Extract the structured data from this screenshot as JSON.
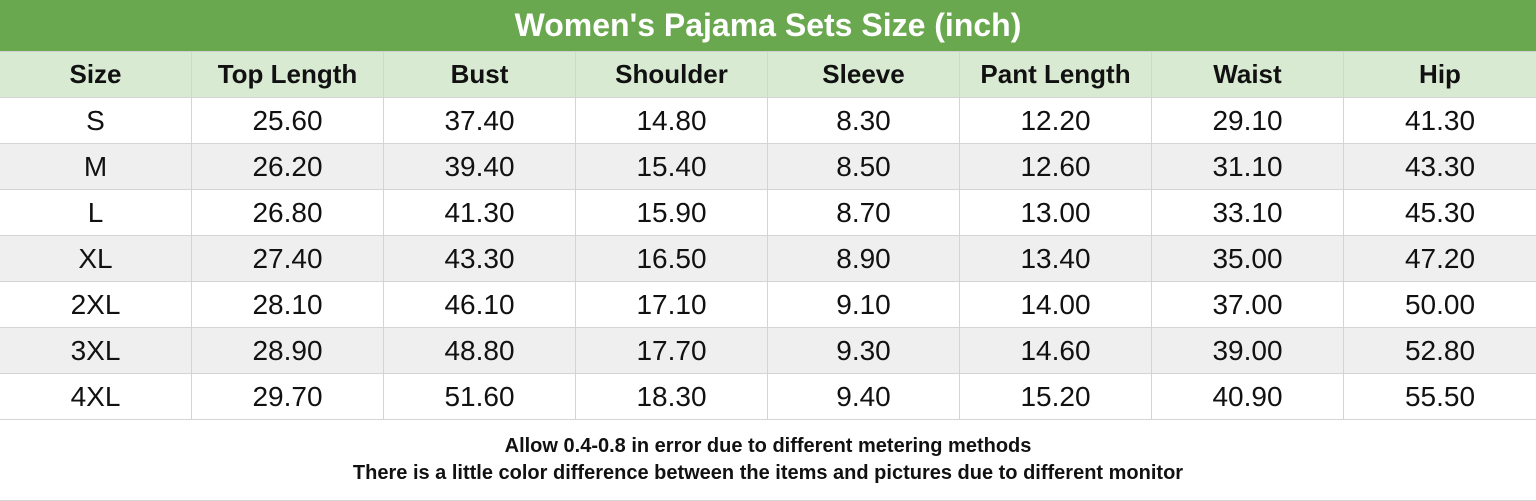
{
  "title": "Women's Pajama Sets Size (inch)",
  "table": {
    "header": [
      "Size",
      "Top Length",
      "Bust",
      "Shoulder",
      "Sleeve",
      "Pant Length",
      "Waist",
      "Hip"
    ],
    "rows": [
      [
        "S",
        "25.60",
        "37.40",
        "14.80",
        "8.30",
        "12.20",
        "29.10",
        "41.30"
      ],
      [
        "M",
        "26.20",
        "39.40",
        "15.40",
        "8.50",
        "12.60",
        "31.10",
        "43.30"
      ],
      [
        "L",
        "26.80",
        "41.30",
        "15.90",
        "8.70",
        "13.00",
        "33.10",
        "45.30"
      ],
      [
        "XL",
        "27.40",
        "43.30",
        "16.50",
        "8.90",
        "13.40",
        "35.00",
        "47.20"
      ],
      [
        "2XL",
        "28.10",
        "46.10",
        "17.10",
        "9.10",
        "14.00",
        "37.00",
        "50.00"
      ],
      [
        "3XL",
        "28.90",
        "48.80",
        "17.70",
        "9.30",
        "14.60",
        "39.00",
        "52.80"
      ],
      [
        "4XL",
        "29.70",
        "51.60",
        "18.30",
        "9.40",
        "15.20",
        "40.90",
        "55.50"
      ]
    ]
  },
  "notes": [
    "Allow 0.4-0.8 in error due to different metering methods",
    "There is a little color difference between the items and pictures due to different monitor"
  ]
}
